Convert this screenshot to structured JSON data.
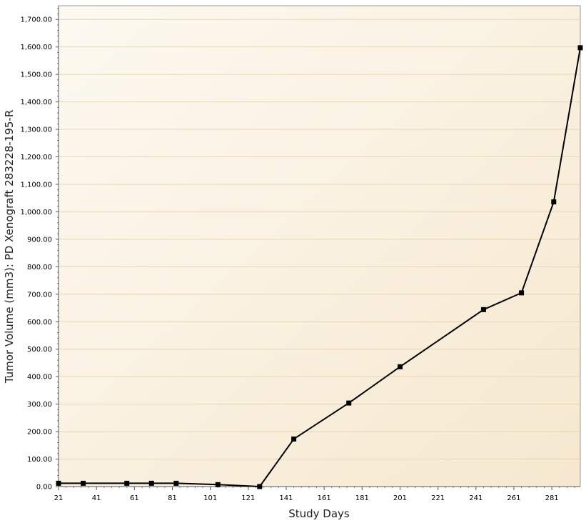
{
  "chart_data": {
    "type": "line",
    "title": "",
    "xlabel": "Study Days",
    "ylabel": "Tumor Volume (mm3): PD Xenograft 283228-195-R",
    "xlim": [
      21,
      296
    ],
    "ylim": [
      0,
      1750
    ],
    "x_ticks": [
      21,
      41,
      61,
      81,
      101,
      121,
      141,
      161,
      181,
      201,
      221,
      241,
      261,
      281
    ],
    "y_ticks": [
      "0.00",
      "100.00",
      "200.00",
      "300.00",
      "400.00",
      "500.00",
      "600.00",
      "700.00",
      "800.00",
      "900.00",
      "1,000.00",
      "1,100.00",
      "1,200.00",
      "1,300.00",
      "1,400.00",
      "1,500.00",
      "1,600.00",
      "1,700.00"
    ],
    "grid": true,
    "legend": "none",
    "series": [
      {
        "x": [
          21,
          34,
          57,
          70,
          83,
          105,
          127,
          145,
          174,
          201,
          245,
          265,
          282,
          296
        ],
        "y": [
          12,
          12,
          12,
          12,
          12,
          7,
          0,
          173,
          304,
          436,
          644,
          705,
          1036,
          1597
        ],
        "color": "#000000",
        "marker": "square"
      }
    ],
    "colors": {
      "plot_bg_start": "#fdf9f1",
      "plot_bg_end": "#f6e8cf",
      "grid": "#e6d6b4",
      "line": "#000000"
    }
  }
}
